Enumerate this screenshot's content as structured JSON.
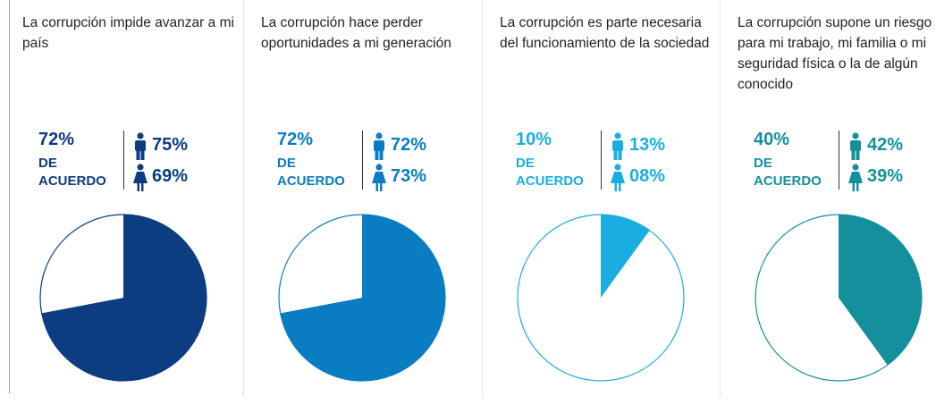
{
  "chart_data": [
    {
      "type": "pie",
      "title": "La corrupción impide avanzar a mi país",
      "values": [
        72
      ],
      "value_labels": [
        "72%"
      ],
      "label": "DE ACUERDO",
      "color": "#0b3d80",
      "gender": [
        {
          "value": 75,
          "label": "75%"
        },
        {
          "value": 69,
          "label": "69%"
        }
      ]
    },
    {
      "type": "pie",
      "title": "La corrupción hace perder oportunidades a mi generación",
      "values": [
        72
      ],
      "value_labels": [
        "72%"
      ],
      "label": "DE ACUERDO",
      "color": "#0a7cc1",
      "gender": [
        {
          "value": 72,
          "label": "72%"
        },
        {
          "value": 73,
          "label": "73%"
        }
      ]
    },
    {
      "type": "pie",
      "title": "La corrupción es parte necesaria del funcionamiento de la sociedad",
      "values": [
        10
      ],
      "value_labels": [
        "10%"
      ],
      "label": "DE ACUERDO",
      "color": "#1aaee0",
      "gender": [
        {
          "value": 13,
          "label": "13%"
        },
        {
          "value": 8,
          "label": "08%"
        }
      ]
    },
    {
      "type": "pie",
      "title": "La corrupción supone un riesgo para mi trabajo, mi familia o mi seguridad física o la de algún conocido",
      "values": [
        40
      ],
      "value_labels": [
        "40%"
      ],
      "label": "DE ACUERDO",
      "color": "#14909c",
      "gender": [
        {
          "value": 42,
          "label": "42%"
        },
        {
          "value": 39,
          "label": "39%"
        }
      ]
    }
  ]
}
